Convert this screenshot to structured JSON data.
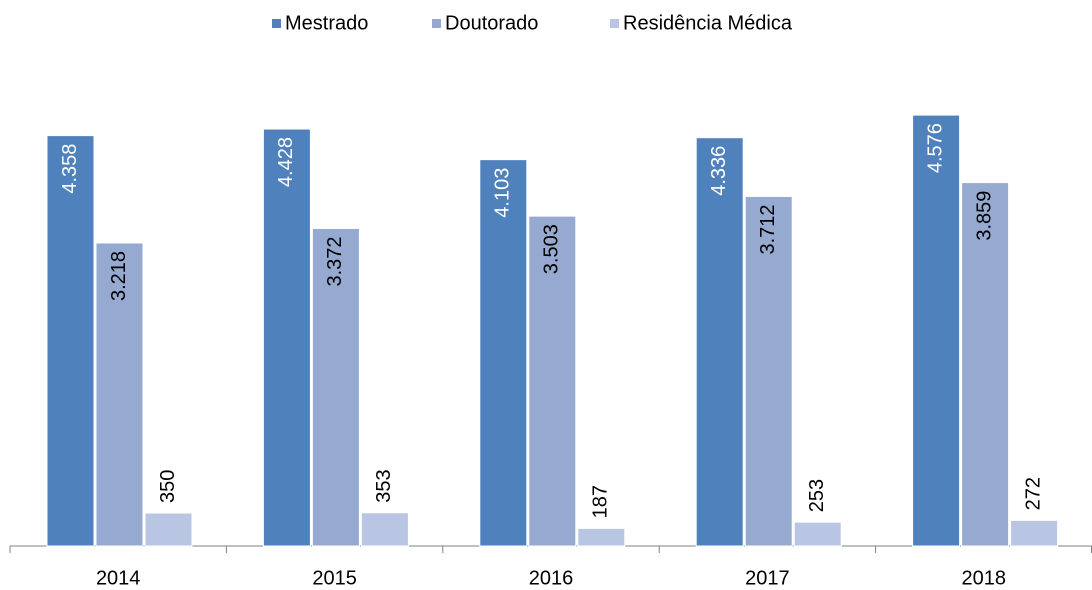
{
  "chart_data": {
    "type": "bar",
    "categories": [
      "2014",
      "2015",
      "2016",
      "2017",
      "2018"
    ],
    "series": [
      {
        "name": "Mestrado",
        "color": "#4f81bd",
        "values": [
          4358,
          4428,
          4103,
          4336,
          4576
        ],
        "value_labels": [
          "4.358",
          "4.428",
          "4.103",
          "4.336",
          "4.576"
        ]
      },
      {
        "name": "Doutorado",
        "color": "#95a9d1",
        "values": [
          3218,
          3372,
          3503,
          3712,
          3859
        ],
        "value_labels": [
          "3.218",
          "3.372",
          "3.503",
          "3.712",
          "3.859"
        ]
      },
      {
        "name": "Residência Médica",
        "color": "#b9c6e3",
        "values": [
          350,
          353,
          187,
          253,
          272
        ]
      }
    ],
    "ylim": [
      0,
      4800
    ],
    "legend": "top"
  }
}
